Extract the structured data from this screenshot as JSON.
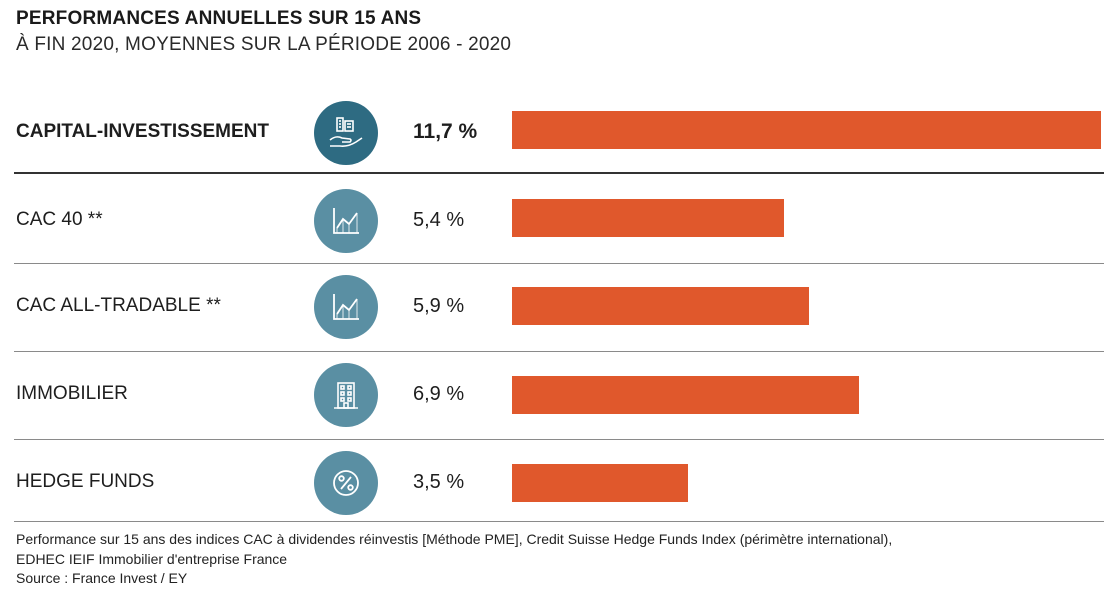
{
  "chart_data": {
    "type": "bar",
    "orientation": "horizontal",
    "title": "PERFORMANCES ANNUELLES SUR 15 ANS",
    "subtitle": "À FIN 2020, MOYENNES SUR LA PÉRIODE 2006 - 2020",
    "categories": [
      "CAPITAL-INVESTISSEMENT",
      "CAC 40 **",
      "CAC ALL-TRADABLE **",
      "IMMOBILIER",
      "HEDGE FUNDS"
    ],
    "values": [
      11.7,
      5.4,
      5.9,
      6.9,
      3.5
    ],
    "value_labels": [
      "11,7 %",
      "5,4 %",
      "5,9 %",
      "6,9 %",
      "3,5 %"
    ],
    "icons": [
      "hand-buildings-icon",
      "line-chart-icon",
      "line-chart-icon",
      "office-building-icon",
      "percent-icon"
    ],
    "xlim": [
      0,
      11.7
    ],
    "bar_color": "#e0582c",
    "icon_color": "#5a8fa3",
    "highlight_icon_color": "#2e6b82"
  },
  "footnote": "Performance sur 15 ans des indices CAC à dividendes réinvestis [Méthode PME], Credit Suisse Hedge Funds Index (périmètre international), EDHEC IEIF Immobilier d'entreprise France",
  "source": "Source : France Invest / EY"
}
